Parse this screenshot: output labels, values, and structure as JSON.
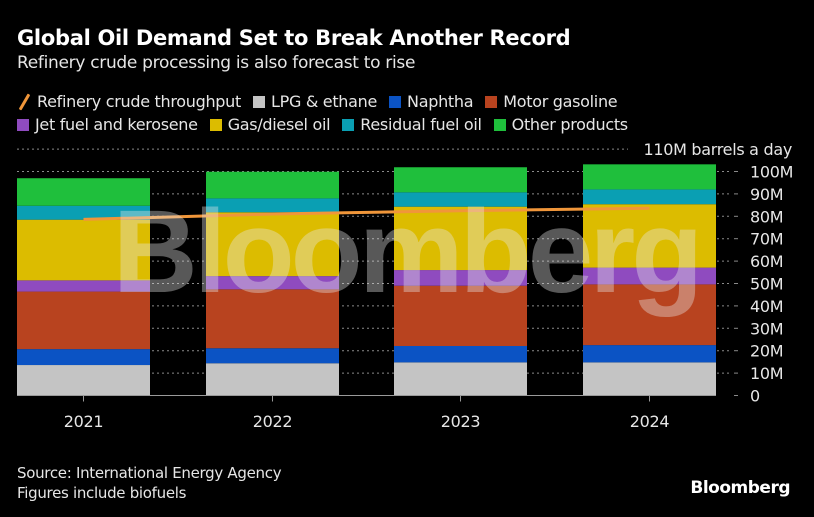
{
  "header": {
    "title": "Global Oil Demand Set to Break Another Record",
    "subtitle": "Refinery crude processing is also forecast to rise"
  },
  "legend": [
    {
      "label": "Refinery crude throughput",
      "type": "line",
      "color": "#f0963a"
    },
    {
      "label": "LPG & ethane",
      "type": "swatch",
      "color": "#c4c4c4"
    },
    {
      "label": "Naphtha",
      "type": "swatch",
      "color": "#0b53c4"
    },
    {
      "label": "Motor gasoline",
      "type": "swatch",
      "color": "#b8431f"
    },
    {
      "label": "Jet fuel and kerosene",
      "type": "swatch",
      "color": "#8f4bbf"
    },
    {
      "label": "Gas/diesel oil",
      "type": "swatch",
      "color": "#dcbc00"
    },
    {
      "label": "Residual fuel oil",
      "type": "swatch",
      "color": "#0a9fb3"
    },
    {
      "label": "Other products",
      "type": "swatch",
      "color": "#1fbf3c"
    }
  ],
  "footer": {
    "source": "Source: International Energy Agency",
    "note": "Figures include biofuels",
    "logo": "Bloomberg"
  },
  "watermark": "Bloomberg",
  "chart_data": {
    "type": "bar",
    "stacked": true,
    "title": "Global Oil Demand Set to Break Another Record",
    "subtitle": "Refinery crude processing is also forecast to rise",
    "xlabel": "",
    "ylabel": "barrels a day",
    "y_unit_label": "110M barrels a day",
    "ylim": [
      0,
      110
    ],
    "yticks": [
      0,
      10,
      20,
      30,
      40,
      50,
      60,
      70,
      80,
      90,
      100,
      110
    ],
    "ytick_labels": [
      "0",
      "10M",
      "20M",
      "30M",
      "40M",
      "50M",
      "60M",
      "70M",
      "80M",
      "90M",
      "100M",
      "110M barrels a day"
    ],
    "grid": true,
    "y_axis_position": "right",
    "legend_position": "top",
    "categories": [
      "2021",
      "2022",
      "2023",
      "2024"
    ],
    "series": [
      {
        "name": "LPG & ethane",
        "color": "#c4c4c4",
        "values": [
          13.6,
          14.4,
          14.8,
          14.8
        ]
      },
      {
        "name": "Naphtha",
        "color": "#0b53c4",
        "values": [
          7.1,
          6.7,
          7.3,
          7.7
        ]
      },
      {
        "name": "Motor gasoline",
        "color": "#b8431f",
        "values": [
          25.7,
          26.3,
          26.9,
          27.1
        ]
      },
      {
        "name": "Jet fuel and kerosene",
        "color": "#8f4bbf",
        "values": [
          5.0,
          5.9,
          7.0,
          7.5
        ]
      },
      {
        "name": "Gas/diesel oil",
        "color": "#dcbc00",
        "values": [
          27.1,
          28.5,
          28.3,
          28.3
        ]
      },
      {
        "name": "Residual fuel oil",
        "color": "#0a9fb3",
        "values": [
          6.2,
          6.2,
          6.4,
          6.6
        ]
      },
      {
        "name": "Other products",
        "color": "#1fbf3c",
        "values": [
          12.3,
          11.9,
          11.2,
          11.2
        ]
      }
    ],
    "line_series": {
      "name": "Refinery crude throughput",
      "color": "#f0963a",
      "values": [
        78.6,
        81.0,
        82.5,
        83.6
      ]
    }
  }
}
